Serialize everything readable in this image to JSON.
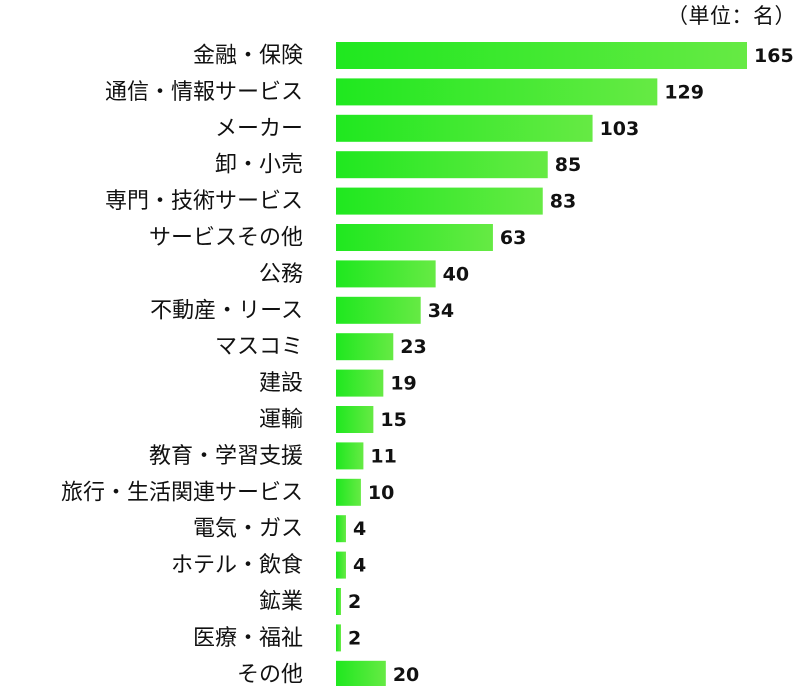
{
  "chart_data": {
    "type": "bar",
    "orientation": "horizontal",
    "unit_label": "（単位：名）",
    "categories": [
      "金融・保険",
      "通信・情報サービス",
      "メーカー",
      "卸・小売",
      "専門・技術サービス",
      "サービスその他",
      "公務",
      "不動産・リース",
      "マスコミ",
      "建設",
      "運輸",
      "教育・学習支援",
      "旅行・生活関連サービス",
      "電気・ガス",
      "ホテル・飲食",
      "鉱業",
      "医療・福祉",
      "その他"
    ],
    "values": [
      165,
      129,
      103,
      85,
      83,
      63,
      40,
      34,
      23,
      19,
      15,
      11,
      10,
      4,
      4,
      2,
      2,
      20
    ],
    "xlim": [
      0,
      165
    ],
    "grid": false,
    "legend": "none",
    "colors": {
      "bar_start": "#1fe81f",
      "bar_end": "#66ea44",
      "text": "#111111"
    }
  }
}
